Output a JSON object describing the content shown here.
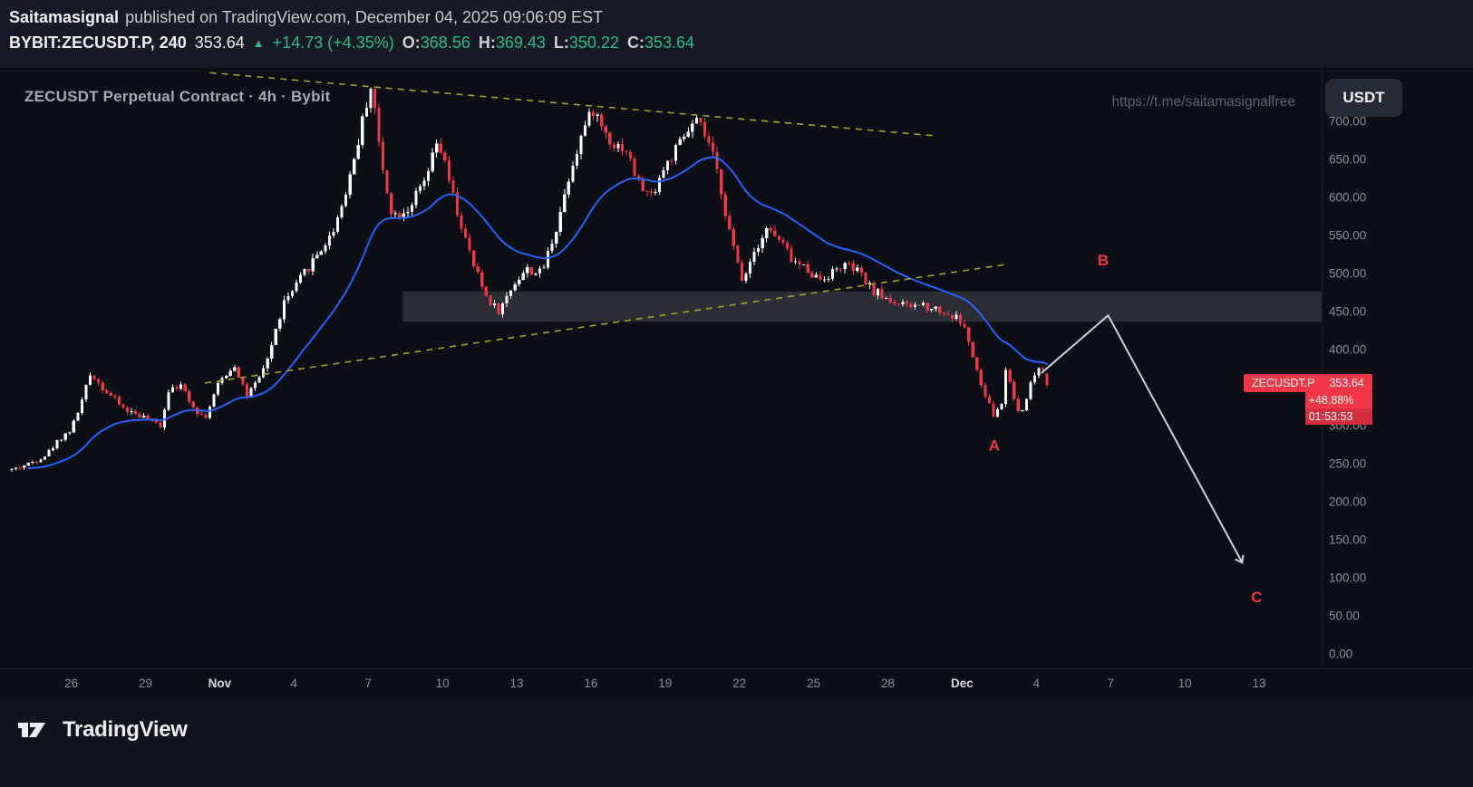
{
  "header": {
    "author": "Saitamasignal",
    "published": "published on TradingView.com, December 04, 2025 09:06:09 EST",
    "symbol": "BYBIT:ZECUSDT.P, 240",
    "price": "353.64",
    "direction_arrow": "▲",
    "change": "+14.73 (+4.35%)",
    "ohlc": [
      {
        "label": "O:",
        "value": "368.56"
      },
      {
        "label": "H:",
        "value": "369.43"
      },
      {
        "label": "L:",
        "value": "350.22"
      },
      {
        "label": "C:",
        "value": "353.64"
      }
    ]
  },
  "chart": {
    "title": "ZECUSDT Perpetual Contract · 4h · Bybit",
    "watermark": "https://t.me/saitamasignalfree",
    "currency_button": "USDT",
    "price_label": {
      "symbol": "ZECUSDT.P",
      "price": "353.64",
      "percent": "+48.88%",
      "countdown": "01:53:53"
    }
  },
  "footer": {
    "logo_text": "TradingView"
  },
  "colors": {
    "up": "#ffffff",
    "down": "#f23645",
    "ma": "#2962ff",
    "trendline": "#a3a52f",
    "zone_fill": "rgba(201,206,214,0.16)",
    "zone_edge": "rgba(255,255,255,0.06)",
    "arrow": "#cfd3dc",
    "abc": "#f23645",
    "green": "#2ebd85",
    "axis_text": "#8b8f99",
    "axis_text_major": "#d6d8de",
    "divider": "rgba(255,255,255,0.07)"
  },
  "chart_data": {
    "type": "candlestick",
    "exchange": "BYBIT",
    "symbol": "ZECUSDT.P",
    "timeframe": "240",
    "title": "ZECUSDT Perpetual Contract · 4h · Bybit",
    "last_candle": {
      "open": 368.56,
      "high": 369.43,
      "low": 350.22,
      "close": 353.64
    },
    "last_close": 353.64,
    "ylim": [
      0,
      770
    ],
    "price_ticks": [
      700,
      650,
      600,
      550,
      500,
      450,
      400,
      350,
      300,
      250,
      200,
      150,
      100,
      50,
      0
    ],
    "time_ticks": [
      {
        "label": "26",
        "day": 2,
        "major": false
      },
      {
        "label": "29",
        "day": 5,
        "major": false
      },
      {
        "label": "Nov",
        "day": 8,
        "major": true
      },
      {
        "label": "4",
        "day": 11,
        "major": false
      },
      {
        "label": "7",
        "day": 14,
        "major": false
      },
      {
        "label": "10",
        "day": 17,
        "major": false
      },
      {
        "label": "13",
        "day": 20,
        "major": false
      },
      {
        "label": "16",
        "day": 23,
        "major": false
      },
      {
        "label": "19",
        "day": 26,
        "major": false
      },
      {
        "label": "22",
        "day": 29,
        "major": false
      },
      {
        "label": "25",
        "day": 32,
        "major": false
      },
      {
        "label": "28",
        "day": 35,
        "major": false
      },
      {
        "label": "Dec",
        "day": 38,
        "major": true
      },
      {
        "label": "4",
        "day": 41,
        "major": false
      },
      {
        "label": "7",
        "day": 44,
        "major": false
      },
      {
        "label": "10",
        "day": 47,
        "major": false
      },
      {
        "label": "13",
        "day": 50,
        "major": false
      }
    ],
    "day_range": [
      -0.4,
      41.5
    ],
    "candle_interval_days": 0.1666667,
    "seed": 42,
    "ma_period": 30,
    "close_anchors": [
      [
        -0.4,
        242
      ],
      [
        0.3,
        250
      ],
      [
        1,
        262
      ],
      [
        1.6,
        285
      ],
      [
        2,
        295
      ],
      [
        2.4,
        330
      ],
      [
        2.8,
        370
      ],
      [
        3.2,
        352
      ],
      [
        3.7,
        336
      ],
      [
        4.2,
        320
      ],
      [
        4.7,
        315
      ],
      [
        5.1,
        308
      ],
      [
        5.6,
        300
      ],
      [
        6,
        355
      ],
      [
        6.5,
        350
      ],
      [
        7,
        322
      ],
      [
        7.4,
        310
      ],
      [
        8,
        358
      ],
      [
        8.6,
        380
      ],
      [
        9.1,
        340
      ],
      [
        9.6,
        360
      ],
      [
        10,
        395
      ],
      [
        10.6,
        462
      ],
      [
        11,
        478
      ],
      [
        11.4,
        500
      ],
      [
        12,
        528
      ],
      [
        12.5,
        550
      ],
      [
        13,
        596
      ],
      [
        13.5,
        660
      ],
      [
        14,
        735
      ],
      [
        14.15,
        750
      ],
      [
        14.5,
        650
      ],
      [
        15,
        575
      ],
      [
        15.6,
        585
      ],
      [
        16.3,
        620
      ],
      [
        16.8,
        672
      ],
      [
        17,
        655
      ],
      [
        17.6,
        580
      ],
      [
        18.2,
        515
      ],
      [
        18.8,
        468
      ],
      [
        19.3,
        450
      ],
      [
        19.9,
        488
      ],
      [
        20.4,
        505
      ],
      [
        21,
        500
      ],
      [
        21.6,
        560
      ],
      [
        22.2,
        640
      ],
      [
        22.7,
        690
      ],
      [
        23.1,
        715
      ],
      [
        23.5,
        690
      ],
      [
        23.9,
        670
      ],
      [
        24.4,
        665
      ],
      [
        24.9,
        620
      ],
      [
        25.4,
        600
      ],
      [
        25.9,
        635
      ],
      [
        26.4,
        660
      ],
      [
        27,
        690
      ],
      [
        27.3,
        700
      ],
      [
        27.8,
        668
      ],
      [
        28.2,
        620
      ],
      [
        28.7,
        540
      ],
      [
        29.1,
        492
      ],
      [
        29.6,
        530
      ],
      [
        30.1,
        560
      ],
      [
        30.7,
        540
      ],
      [
        31.2,
        515
      ],
      [
        31.8,
        505
      ],
      [
        32.2,
        492
      ],
      [
        32.7,
        500
      ],
      [
        33.2,
        512
      ],
      [
        33.8,
        502
      ],
      [
        34.3,
        480
      ],
      [
        34.9,
        468
      ],
      [
        35.3,
        462
      ],
      [
        35.8,
        455
      ],
      [
        36.3,
        460
      ],
      [
        36.9,
        455
      ],
      [
        37.4,
        446
      ],
      [
        37.9,
        440
      ],
      [
        38.2,
        420
      ],
      [
        38.5,
        380
      ],
      [
        38.9,
        340
      ],
      [
        39.3,
        312
      ],
      [
        39.6,
        330
      ],
      [
        39.8,
        380
      ],
      [
        40.1,
        335
      ],
      [
        40.35,
        312
      ],
      [
        40.7,
        350
      ],
      [
        41,
        372
      ],
      [
        41.2,
        380
      ],
      [
        41.4,
        368
      ],
      [
        41.5,
        353.64
      ]
    ],
    "trendlines": [
      {
        "from": [
          7.6,
          764
        ],
        "to": [
          36.9,
          681
        ]
      },
      {
        "from": [
          7.4,
          356
        ],
        "to": [
          39.8,
          512
        ]
      }
    ],
    "zone": {
      "from_day": 15.4,
      "to_day": 52.6,
      "top": 476,
      "bottom": 437
    },
    "abc": {
      "path": [
        [
          41.2,
          369
        ],
        [
          43.9,
          445
        ],
        [
          49.3,
          121
        ]
      ],
      "labels": [
        {
          "text": "A",
          "day": 39.3,
          "price": 267
        },
        {
          "text": "B",
          "day": 43.7,
          "price": 511
        },
        {
          "text": "C",
          "day": 49.9,
          "price": 68
        }
      ]
    }
  }
}
